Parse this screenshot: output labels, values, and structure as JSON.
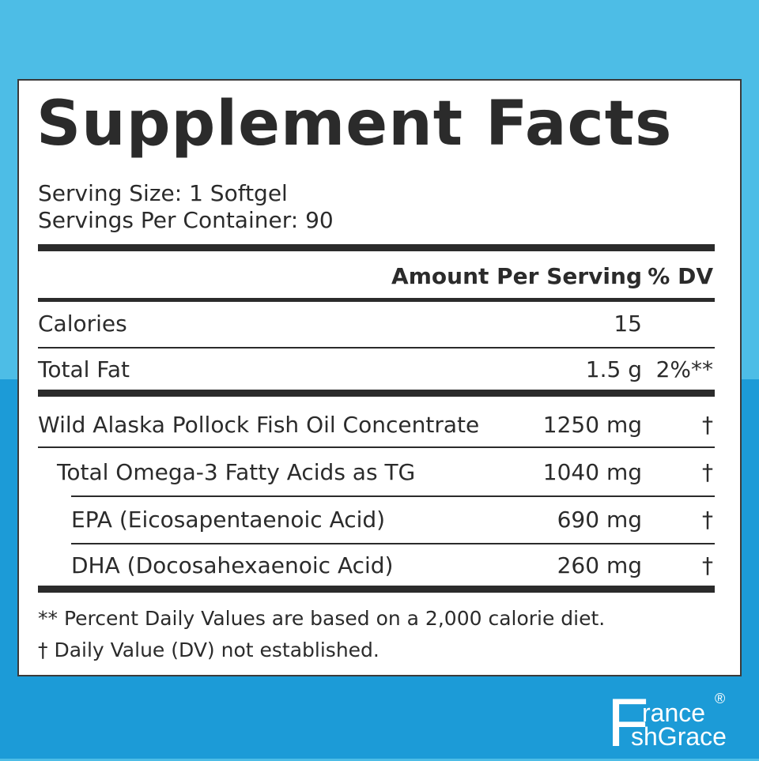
{
  "label": {
    "title": "Supplement Facts",
    "serving_size": "Serving Size: 1 Softgel",
    "servings_per_container": "Servings Per Container: 90",
    "header": {
      "amount": "Amount Per Serving",
      "dv": "% DV"
    },
    "rows": [
      {
        "name": "Calories",
        "amount": "15"
      },
      {
        "name": "Total Fat",
        "amount": "1.5 g",
        "dv": "2%**"
      },
      {
        "name": "Wild Alaska Pollock Fish Oil Concentrate",
        "amount": "1250 mg",
        "dv": "†"
      },
      {
        "name": "Total Omega-3 Fatty Acids as TG",
        "amount": "1040 mg",
        "dv": "†"
      },
      {
        "name": "EPA (Eicosapentaenoic Acid)",
        "amount": "690 mg",
        "dv": "†"
      },
      {
        "name": "DHA (Docosahexaenoic Acid)",
        "amount": "260 mg",
        "dv": "†"
      }
    ],
    "footnotes": [
      "** Percent Daily Values are based on a 2,000 calorie diet.",
      "†  Daily Value (DV) not established."
    ]
  },
  "logo": {
    "letter": "F",
    "line1": "rance",
    "line2": "shGrace",
    "mark": "®"
  }
}
